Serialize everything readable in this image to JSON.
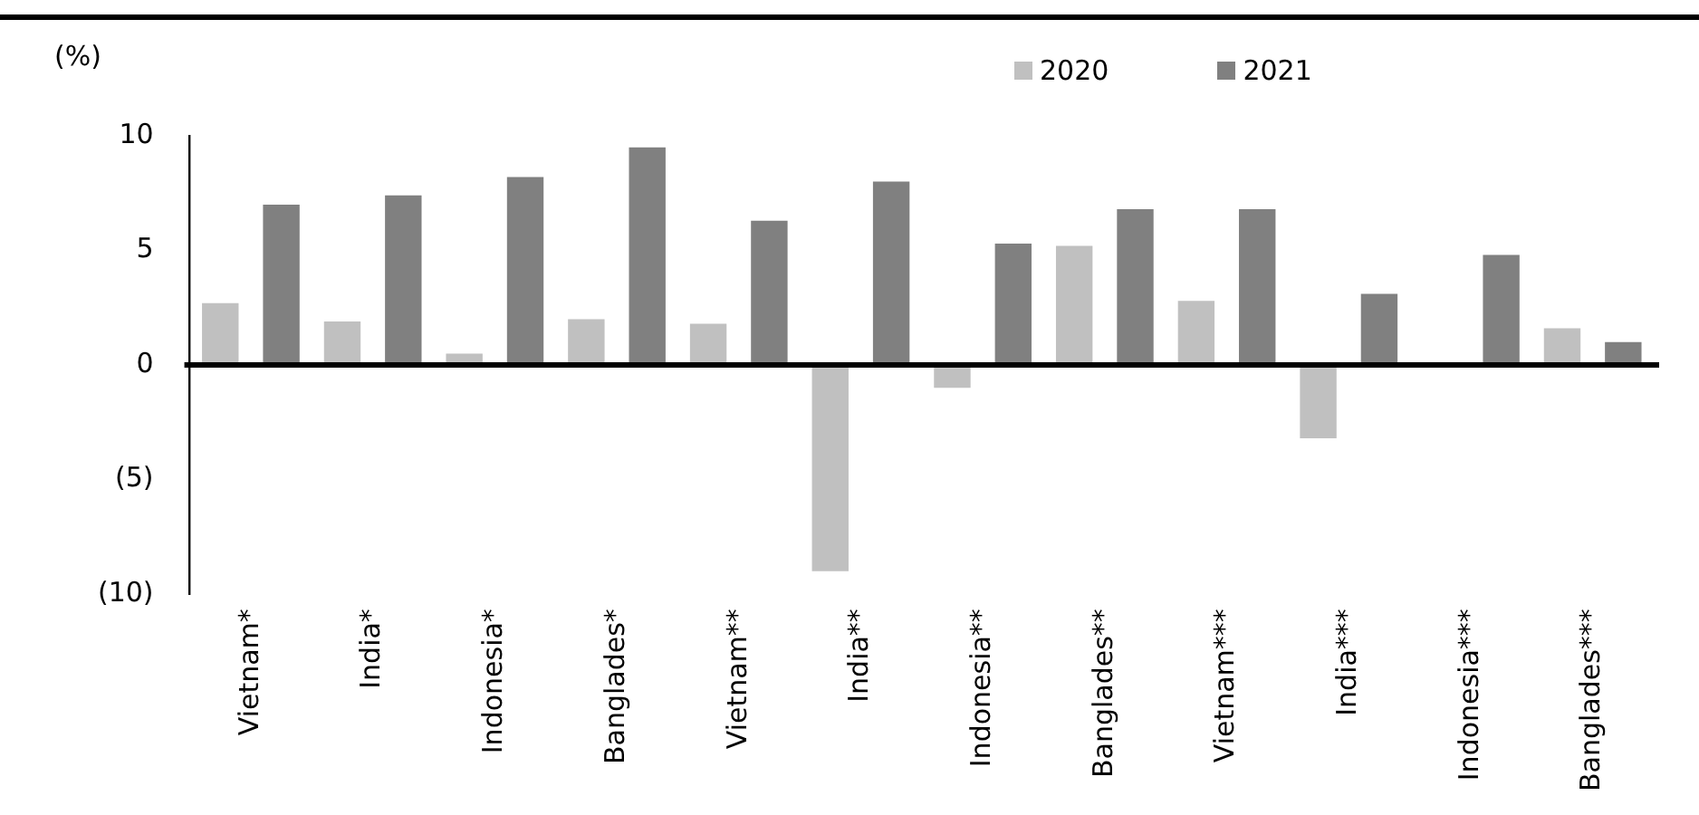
{
  "chart_data": {
    "type": "bar",
    "ylabel": "(%)",
    "categories": [
      "Vietnam*",
      "India*",
      "Indonesia*",
      "Banglades*",
      "Vietnam**",
      "India**",
      "Indonesia**",
      "Banglades**",
      "Vietnam***",
      "India***",
      "Indonesia***",
      "Banglades***"
    ],
    "series": [
      {
        "name": "2020",
        "color": "#c0c0c0",
        "values": [
          2.7,
          1.9,
          0.5,
          2.0,
          1.8,
          -9.0,
          -1.0,
          5.2,
          2.8,
          -3.2,
          null,
          1.6
        ]
      },
      {
        "name": "2021",
        "color": "#808080",
        "values": [
          7.0,
          7.4,
          8.2,
          9.5,
          6.3,
          8.0,
          5.3,
          6.8,
          6.8,
          3.1,
          4.8,
          1.0
        ]
      }
    ],
    "ylim": [
      -10,
      10
    ],
    "yticks": [
      {
        "value": 10,
        "label": "10"
      },
      {
        "value": 5,
        "label": "5"
      },
      {
        "value": 0,
        "label": "0"
      },
      {
        "value": -5,
        "label": "(5)"
      },
      {
        "value": -10,
        "label": "(10)"
      }
    ],
    "ref_lines": [
      {
        "axis": "y",
        "value": 0,
        "color": "#000000"
      }
    ],
    "grid": false,
    "legend": "top right"
  }
}
